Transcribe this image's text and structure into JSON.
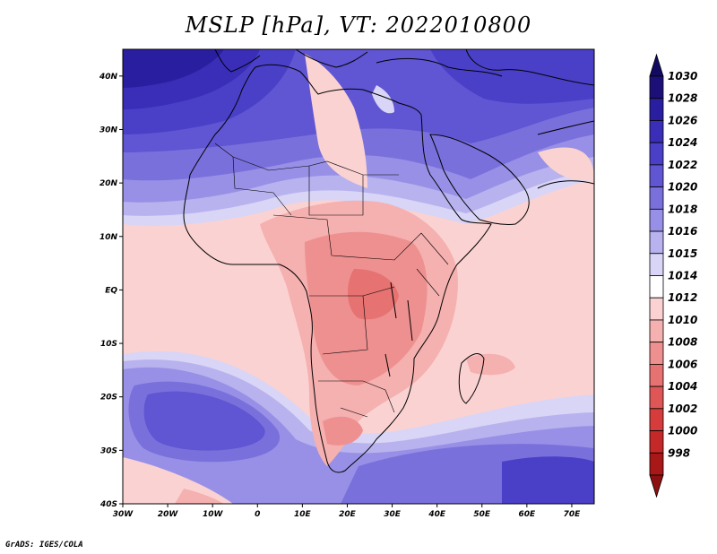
{
  "title": "MSLP [hPa], VT: 2022010800",
  "credit": "GrADS: IGES/COLA",
  "map": {
    "lon_range": [
      -30,
      75
    ],
    "lat_range": [
      -40,
      45
    ],
    "lon_ticks": [
      {
        "value": -30,
        "label": "30W"
      },
      {
        "value": -20,
        "label": "20W"
      },
      {
        "value": -10,
        "label": "10W"
      },
      {
        "value": 0,
        "label": "0"
      },
      {
        "value": 10,
        "label": "10E"
      },
      {
        "value": 20,
        "label": "20E"
      },
      {
        "value": 30,
        "label": "30E"
      },
      {
        "value": 40,
        "label": "40E"
      },
      {
        "value": 50,
        "label": "50E"
      },
      {
        "value": 60,
        "label": "60E"
      },
      {
        "value": 70,
        "label": "70E"
      }
    ],
    "lat_ticks": [
      {
        "value": 40,
        "label": "40N"
      },
      {
        "value": 30,
        "label": "30N"
      },
      {
        "value": 20,
        "label": "20N"
      },
      {
        "value": 10,
        "label": "10N"
      },
      {
        "value": 0,
        "label": "EQ"
      },
      {
        "value": -10,
        "label": "10S"
      },
      {
        "value": -20,
        "label": "20S"
      },
      {
        "value": -30,
        "label": "30S"
      },
      {
        "value": -40,
        "label": "40S"
      }
    ]
  },
  "colorbar": {
    "levels": [
      {
        "label": "1030",
        "color": "#1c1078"
      },
      {
        "label": "1028",
        "color": "#2a1ea0"
      },
      {
        "label": "1026",
        "color": "#3a2eb8"
      },
      {
        "label": "1024",
        "color": "#4a40c8"
      },
      {
        "label": "1022",
        "color": "#6055d2"
      },
      {
        "label": "1020",
        "color": "#7a70dc"
      },
      {
        "label": "1018",
        "color": "#9890e6"
      },
      {
        "label": "1016",
        "color": "#b8b2ee"
      },
      {
        "label": "1015",
        "color": "#d8d5f6"
      },
      {
        "label": "1014",
        "color": "#ffffff"
      },
      {
        "label": "1012",
        "color": "#fbd2d2"
      },
      {
        "label": "1010",
        "color": "#f5b0b0"
      },
      {
        "label": "1008",
        "color": "#ee9090"
      },
      {
        "label": "1006",
        "color": "#e67272"
      },
      {
        "label": "1004",
        "color": "#de5656"
      },
      {
        "label": "1002",
        "color": "#d63c3c"
      },
      {
        "label": "1000",
        "color": "#c42828"
      },
      {
        "label": "998",
        "color": "#a81818"
      }
    ],
    "top_cap_color": "#120a60",
    "bottom_cap_color": "#8c1010"
  }
}
